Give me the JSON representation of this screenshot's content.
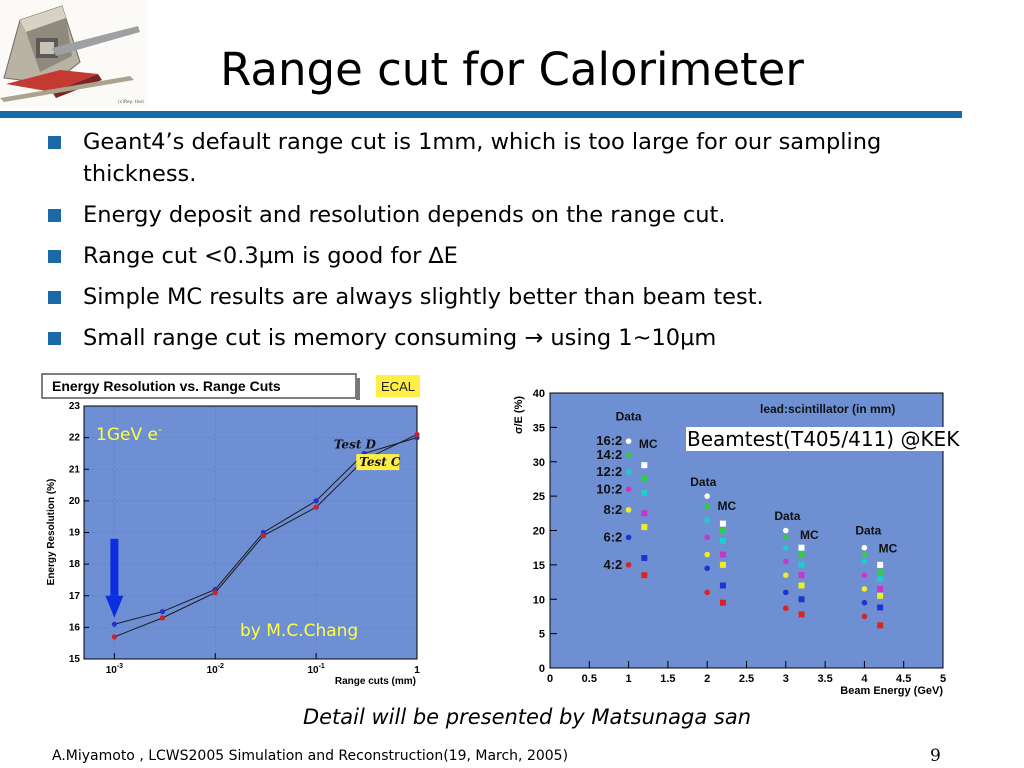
{
  "slide": {
    "title": "Range cut for Calorimeter",
    "logo_icon": "detector-logo",
    "logo_credit": "(c)Rey. Hori",
    "accent_color": "#1a6aa8",
    "bullets": [
      "Geant4’s default range cut is 1mm,  which is too large for our sampling thickness.",
      "Energy deposit and resolution depends on the range cut.",
      "Range cut <0.3µm is good for ∆E",
      "Simple MC results are always slightly better than beam test.",
      "Small range cut is memory consuming  → using 1~10µm"
    ],
    "caption": "Detail will be presented by Matsunaga san",
    "footer": "A.Miyamoto , LCWS2005 Simulation and Reconstruction(19, March, 2005)",
    "page_number": "9"
  },
  "chart_data": [
    {
      "type": "line",
      "title": "Energy Resolution vs. Range Cuts",
      "tag": "ECAL",
      "annotation": "1GeV e-",
      "credit": "by M.C.Chang",
      "xlabel": "Range cuts (mm)",
      "ylabel": "Energy Resolution (%)",
      "xscale": "log",
      "xlim": [
        0.0005,
        1
      ],
      "ylim": [
        15,
        23
      ],
      "xticks": [
        "10^-3",
        "10^-2",
        "10^-1",
        "1"
      ],
      "yticks": [
        "15",
        "16",
        "17",
        "18",
        "19",
        "20",
        "21",
        "22",
        "23"
      ],
      "grid": true,
      "arrow_at_x": 0.001,
      "series": [
        {
          "name": "Test D",
          "color": "#2233cc",
          "x": [
            0.001,
            0.003,
            0.01,
            0.03,
            0.1,
            0.3,
            1
          ],
          "values": [
            16.1,
            16.5,
            17.2,
            19.0,
            20.0,
            21.5,
            22.0
          ]
        },
        {
          "name": "Test C",
          "color": "#cc2222",
          "x": [
            0.001,
            0.003,
            0.01,
            0.03,
            0.1,
            0.3,
            1
          ],
          "values": [
            15.7,
            16.3,
            17.1,
            18.9,
            19.8,
            21.3,
            22.1
          ]
        }
      ]
    },
    {
      "type": "scatter",
      "title": "lead:scintillator (in mm)",
      "annotation": "Beamtest(T405/411) @KEK",
      "xlabel": "Beam Energy (GeV)",
      "ylabel": "σ/E (%)",
      "xlim": [
        0,
        5
      ],
      "ylim": [
        0,
        40
      ],
      "xticks": [
        "0",
        "0.5",
        "1",
        "1.5",
        "2",
        "2.5",
        "3",
        "3.5",
        "4",
        "4.5",
        "5"
      ],
      "yticks": [
        "0",
        "5",
        "10",
        "15",
        "20",
        "25",
        "30",
        "35",
        "40"
      ],
      "ratio_labels": [
        "16:2",
        "14:2",
        "12:2",
        "10:2",
        "8:2",
        "6:2",
        "4:2"
      ],
      "group_labels": [
        {
          "text": "Data",
          "x": 1.0,
          "y": 36
        },
        {
          "text": "MC",
          "x": 1.25,
          "y": 32
        },
        {
          "text": "Data",
          "x": 1.95,
          "y": 26.5
        },
        {
          "text": "MC",
          "x": 2.25,
          "y": 23
        },
        {
          "text": "Data",
          "x": 3.02,
          "y": 21.5
        },
        {
          "text": "MC",
          "x": 3.3,
          "y": 18.8
        },
        {
          "text": "Data",
          "x": 4.05,
          "y": 19.4
        },
        {
          "text": "MC",
          "x": 4.3,
          "y": 16.8
        }
      ],
      "series": [
        {
          "name": "16:2",
          "color": "#ffffff",
          "data_x": [
            1,
            2,
            3,
            4
          ],
          "data": [
            33,
            25,
            20,
            17.5
          ],
          "mc_x": [
            1.2,
            2.2,
            3.2,
            4.2
          ],
          "mc": [
            29.5,
            21,
            17.5,
            15
          ]
        },
        {
          "name": "14:2",
          "color": "#33cc44",
          "data_x": [
            1,
            2,
            3,
            4
          ],
          "data": [
            31,
            23.5,
            19,
            16.5
          ],
          "mc_x": [
            1.2,
            2.2,
            3.2,
            4.2
          ],
          "mc": [
            27.5,
            20,
            16.5,
            14
          ]
        },
        {
          "name": "12:2",
          "color": "#22cccc",
          "data_x": [
            1,
            2,
            3,
            4
          ],
          "data": [
            28.5,
            21.5,
            17.5,
            15.5
          ],
          "mc_x": [
            1.2,
            2.2,
            3.2,
            4.2
          ],
          "mc": [
            25.5,
            18.5,
            15,
            13
          ]
        },
        {
          "name": "10:2",
          "color": "#cc33cc",
          "data_x": [
            1,
            2,
            3,
            4
          ],
          "data": [
            26,
            19,
            15.5,
            13.5
          ],
          "mc_x": [
            1.2,
            2.2,
            3.2,
            4.2
          ],
          "mc": [
            22.5,
            16.5,
            13.5,
            11.5
          ]
        },
        {
          "name": "8:2",
          "color": "#eeee22",
          "data_x": [
            1,
            2,
            3,
            4
          ],
          "data": [
            23,
            16.5,
            13.5,
            11.5
          ],
          "mc_x": [
            1.2,
            2.2,
            3.2,
            4.2
          ],
          "mc": [
            20.5,
            15,
            12,
            10.5
          ]
        },
        {
          "name": "6:2",
          "color": "#2233cc",
          "data_x": [
            1,
            2,
            3,
            4
          ],
          "data": [
            19,
            14.5,
            11,
            9.5
          ],
          "mc_x": [
            1.2,
            2.2,
            3.2,
            4.2
          ],
          "mc": [
            16,
            12,
            10,
            8.8
          ]
        },
        {
          "name": "4:2",
          "color": "#dd2222",
          "data_x": [
            1,
            2,
            3,
            4
          ],
          "data": [
            15,
            11,
            8.7,
            7.5
          ],
          "mc_x": [
            1.2,
            2.2,
            3.2,
            4.2
          ],
          "mc": [
            13.5,
            9.5,
            7.8,
            6.2
          ]
        }
      ]
    }
  ]
}
